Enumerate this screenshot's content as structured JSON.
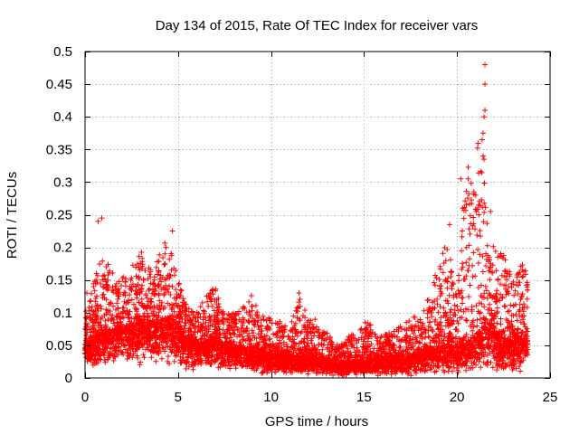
{
  "chart_data": {
    "type": "scatter",
    "title": "Day 134 of 2015, Rate Of TEC Index for receiver vars",
    "xlabel": "GPS time / hours",
    "ylabel": "ROTI / TECUs",
    "xlim": [
      0,
      25
    ],
    "ylim": [
      0,
      0.5
    ],
    "xticks": [
      "0",
      "5",
      "10",
      "15",
      "20",
      "25"
    ],
    "yticks": [
      "0",
      "0.05",
      "0.1",
      "0.15",
      "0.2",
      "0.25",
      "0.3",
      "0.35",
      "0.4",
      "0.45",
      "0.5"
    ],
    "grid": true,
    "marker": "+",
    "series": [
      {
        "name": "ROTI",
        "color": "#ff0000",
        "points_count_approx": 6000,
        "envelope": {
          "x": [
            0,
            0.5,
            1,
            1.5,
            2,
            2.5,
            3,
            3.5,
            4,
            4.5,
            5,
            5.5,
            6,
            6.5,
            7,
            7.5,
            8,
            8.5,
            9,
            9.5,
            10,
            10.5,
            11,
            11.5,
            12,
            12.5,
            13,
            13.5,
            14,
            14.5,
            15,
            15.5,
            16,
            16.5,
            17,
            17.5,
            18,
            18.5,
            19,
            19.5,
            20,
            20.5,
            21,
            21.5,
            22,
            22.5,
            23,
            23.5,
            23.8
          ],
          "median": [
            0.05,
            0.06,
            0.07,
            0.07,
            0.075,
            0.08,
            0.085,
            0.08,
            0.085,
            0.09,
            0.07,
            0.06,
            0.05,
            0.055,
            0.06,
            0.05,
            0.045,
            0.045,
            0.04,
            0.04,
            0.035,
            0.035,
            0.03,
            0.03,
            0.035,
            0.03,
            0.025,
            0.02,
            0.02,
            0.025,
            0.025,
            0.025,
            0.03,
            0.03,
            0.03,
            0.03,
            0.035,
            0.04,
            0.045,
            0.05,
            0.045,
            0.05,
            0.065,
            0.08,
            0.07,
            0.06,
            0.055,
            0.06,
            0.06
          ],
          "upper": [
            0.1,
            0.15,
            0.2,
            0.16,
            0.16,
            0.17,
            0.2,
            0.17,
            0.19,
            0.22,
            0.15,
            0.11,
            0.1,
            0.13,
            0.14,
            0.1,
            0.1,
            0.11,
            0.13,
            0.1,
            0.09,
            0.09,
            0.08,
            0.13,
            0.09,
            0.09,
            0.07,
            0.05,
            0.06,
            0.07,
            0.09,
            0.08,
            0.07,
            0.07,
            0.08,
            0.09,
            0.1,
            0.13,
            0.18,
            0.21,
            0.14,
            0.3,
            0.42,
            0.3,
            0.2,
            0.19,
            0.15,
            0.18,
            0.17
          ],
          "lower": [
            0.02,
            0.015,
            0.015,
            0.015,
            0.02,
            0.02,
            0.02,
            0.02,
            0.02,
            0.02,
            0.015,
            0.01,
            0.01,
            0.015,
            0.015,
            0.01,
            0.01,
            0.01,
            0.01,
            0.005,
            0.005,
            0.005,
            0.005,
            0.005,
            0.005,
            0.005,
            0.003,
            0.003,
            0.003,
            0.003,
            0.003,
            0.003,
            0.003,
            0.003,
            0.003,
            0.003,
            0.005,
            0.005,
            0.005,
            0.005,
            0.005,
            0.01,
            0.01,
            0.01,
            0.01,
            0.01,
            0.01,
            0.01,
            0.01
          ]
        },
        "outliers": [
          {
            "x": 21.5,
            "y": 0.48
          },
          {
            "x": 21.5,
            "y": 0.45
          },
          {
            "x": 21.5,
            "y": 0.41
          },
          {
            "x": 21.45,
            "y": 0.4
          },
          {
            "x": 21.4,
            "y": 0.375
          },
          {
            "x": 21.35,
            "y": 0.365
          },
          {
            "x": 21.4,
            "y": 0.34
          },
          {
            "x": 21.45,
            "y": 0.335
          },
          {
            "x": 20.2,
            "y": 0.305
          },
          {
            "x": 20.6,
            "y": 0.305
          },
          {
            "x": 20.9,
            "y": 0.285
          },
          {
            "x": 21.0,
            "y": 0.28
          },
          {
            "x": 20.5,
            "y": 0.265
          },
          {
            "x": 20.3,
            "y": 0.26
          },
          {
            "x": 19.6,
            "y": 0.235
          },
          {
            "x": 0.7,
            "y": 0.24
          },
          {
            "x": 0.9,
            "y": 0.245
          },
          {
            "x": 4.7,
            "y": 0.225
          },
          {
            "x": 0.1,
            "y": 0.13
          },
          {
            "x": 11.5,
            "y": 0.13
          },
          {
            "x": 21.8,
            "y": 0.255
          }
        ]
      }
    ]
  }
}
